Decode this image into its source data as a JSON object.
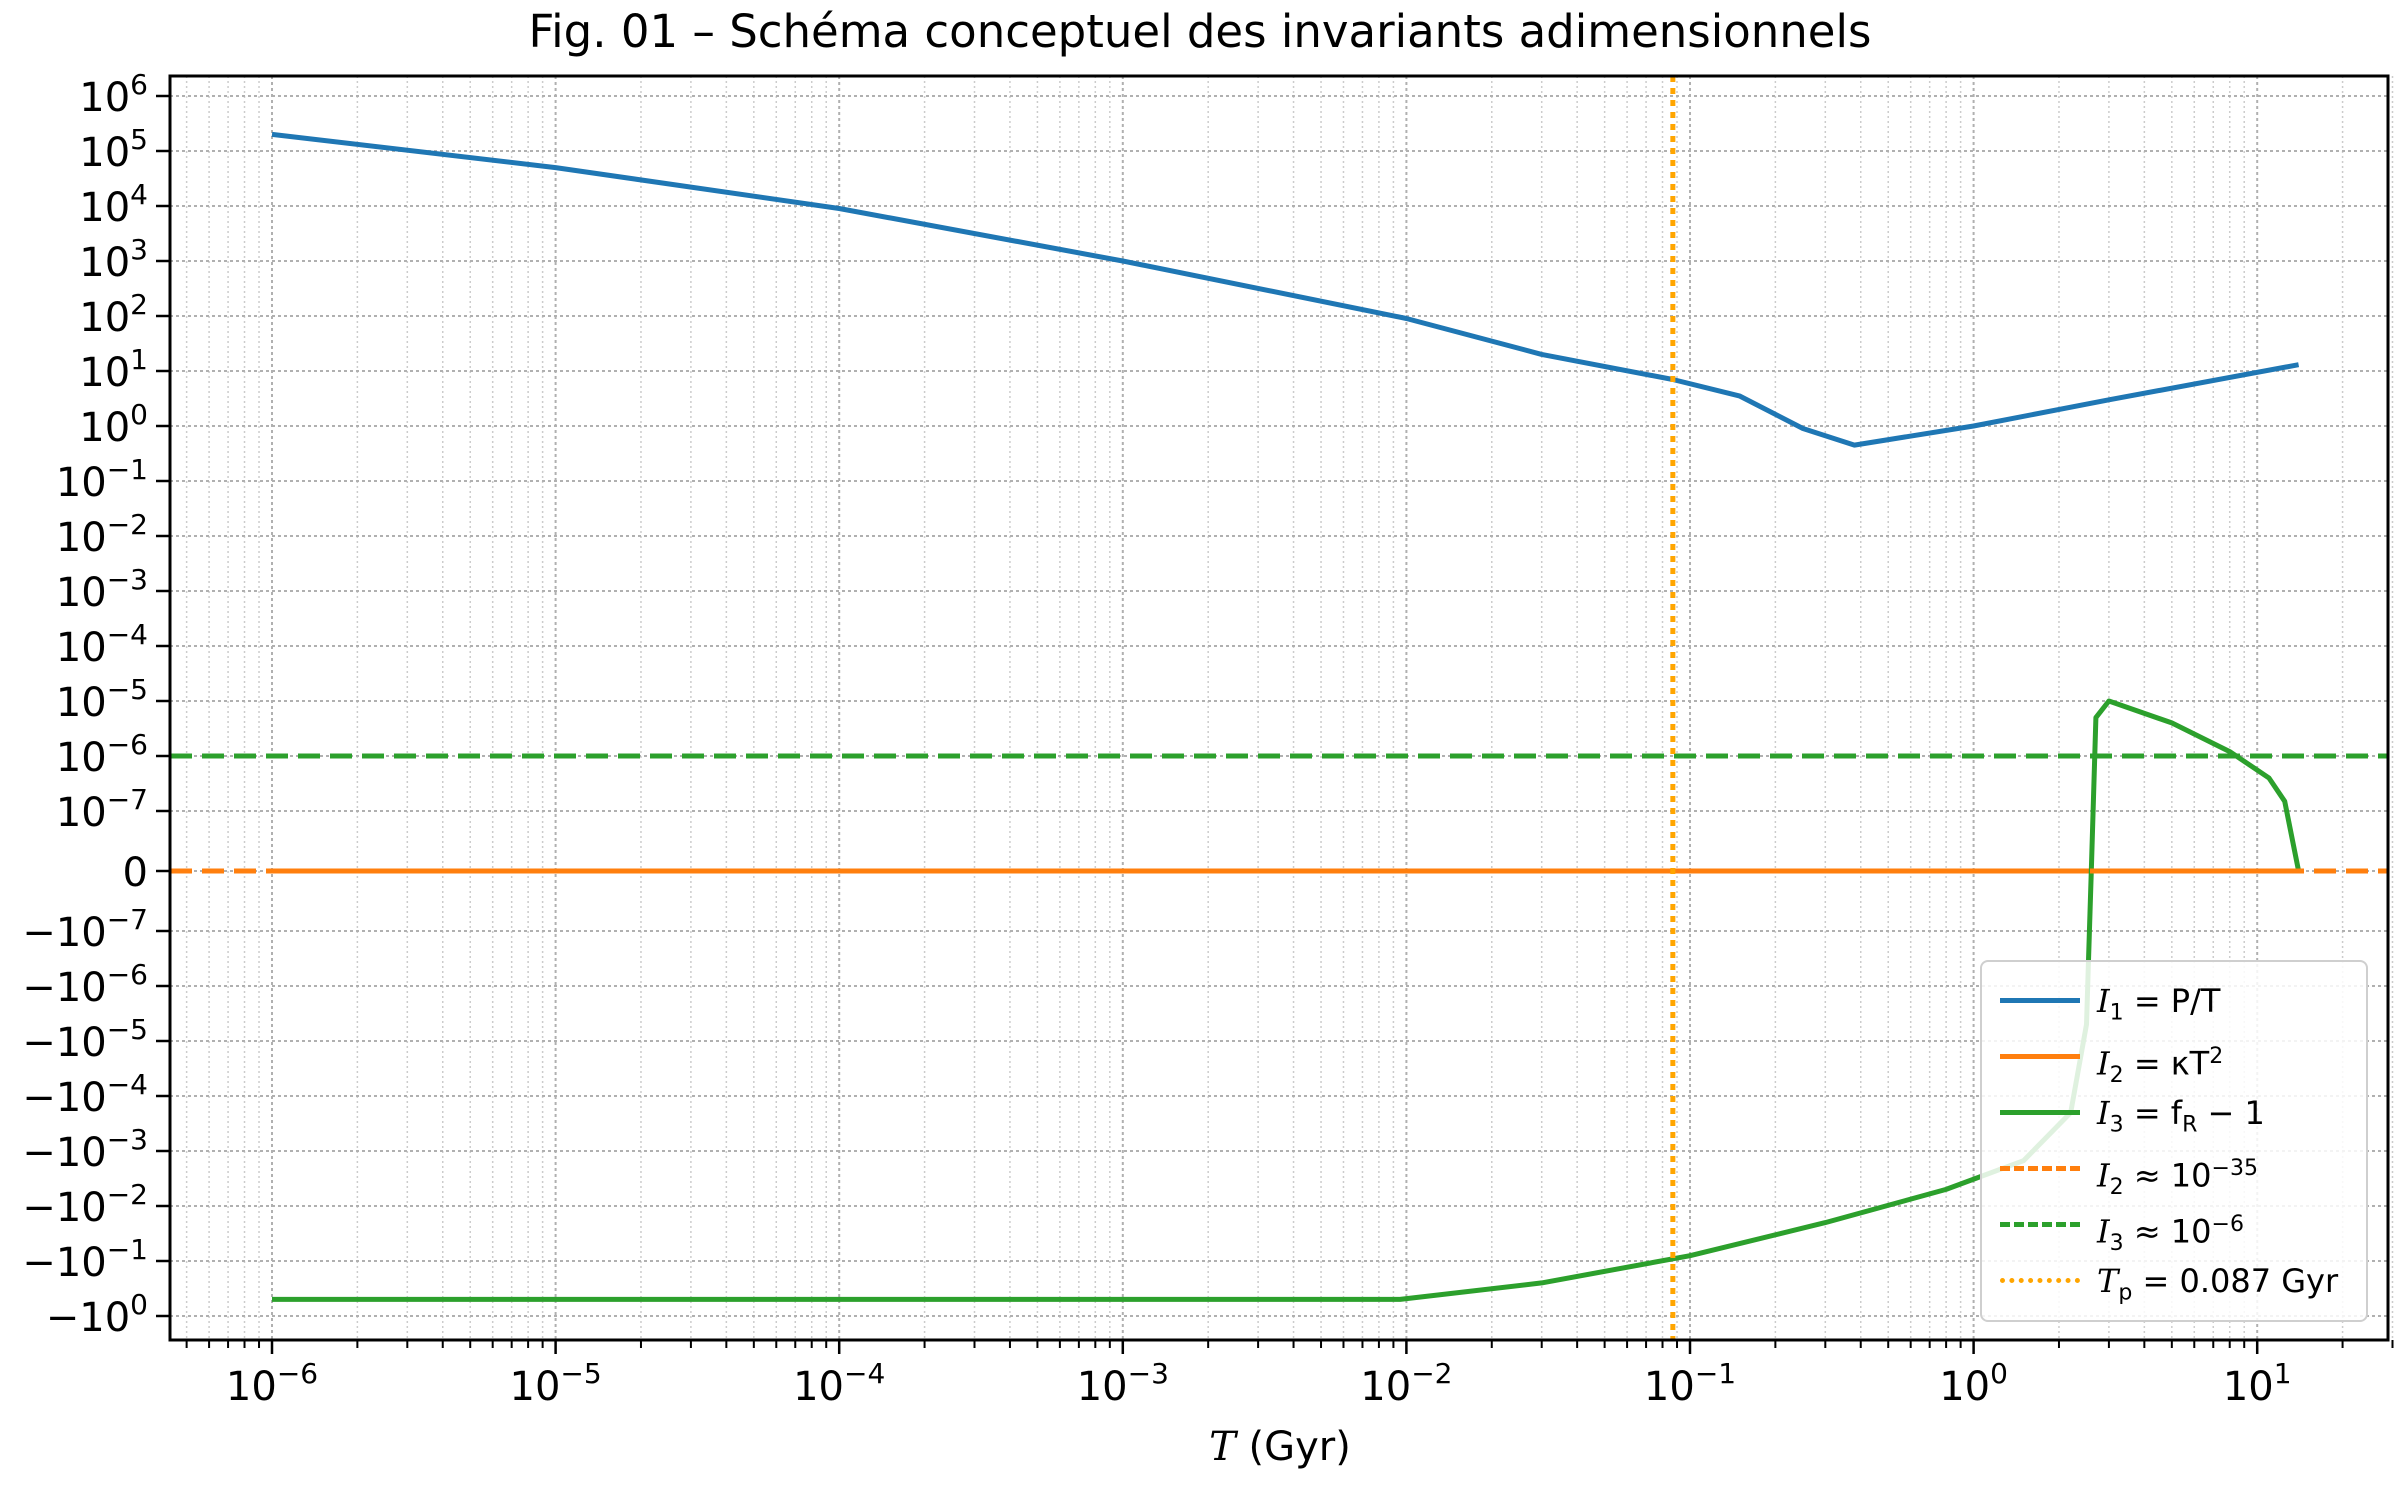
{
  "chart_data": {
    "type": "line",
    "title": "Fig. 01 – Schéma conceptuel des invariants adimensionnels",
    "xlabel": "T (Gyr)",
    "xlabel_var": "T",
    "xlabel_unit": "(Gyr)",
    "ylabel": "",
    "x_scale": "log",
    "y_scale": "symlog",
    "xlim": [
      5e-07,
      30
    ],
    "ylim": [
      -1.4,
      1400000.0
    ],
    "grid": true,
    "x_ticks": [
      {
        "base": "10",
        "exp": "−6"
      },
      {
        "base": "10",
        "exp": "−5"
      },
      {
        "base": "10",
        "exp": "−4"
      },
      {
        "base": "10",
        "exp": "−3"
      },
      {
        "base": "10",
        "exp": "−2"
      },
      {
        "base": "10",
        "exp": "−1"
      },
      {
        "base": "10",
        "exp": "0"
      },
      {
        "base": "10",
        "exp": "1"
      }
    ],
    "y_ticks": [
      {
        "base": "10",
        "exp": "6"
      },
      {
        "base": "10",
        "exp": "5"
      },
      {
        "base": "10",
        "exp": "4"
      },
      {
        "base": "10",
        "exp": "3"
      },
      {
        "base": "10",
        "exp": "2"
      },
      {
        "base": "10",
        "exp": "1"
      },
      {
        "base": "10",
        "exp": "0"
      },
      {
        "base": "10",
        "exp": "−1"
      },
      {
        "base": "10",
        "exp": "−2"
      },
      {
        "base": "10",
        "exp": "−3"
      },
      {
        "base": "10",
        "exp": "−4"
      },
      {
        "base": "10",
        "exp": "−5"
      },
      {
        "base": "10",
        "exp": "−6"
      },
      {
        "base": "10",
        "exp": "−7"
      },
      {
        "base": "0",
        "exp": ""
      },
      {
        "base": "−10",
        "exp": "−7"
      },
      {
        "base": "−10",
        "exp": "−6"
      },
      {
        "base": "−10",
        "exp": "−5"
      },
      {
        "base": "−10",
        "exp": "−4"
      },
      {
        "base": "−10",
        "exp": "−3"
      },
      {
        "base": "−10",
        "exp": "−2"
      },
      {
        "base": "−10",
        "exp": "−1"
      },
      {
        "base": "−10",
        "exp": "0"
      }
    ],
    "legend_position": "bottom-right",
    "series": [
      {
        "name": "I1 = P/T",
        "color": "#1f77b4",
        "style": "solid",
        "x": [
          1e-06,
          1e-05,
          0.0001,
          0.001,
          0.01,
          0.03,
          0.087,
          0.15,
          0.25,
          0.38,
          1,
          3,
          14
        ],
        "y": [
          200000,
          50000,
          9000,
          1000,
          90,
          20,
          7,
          3.5,
          0.9,
          0.45,
          1,
          3,
          13
        ]
      },
      {
        "name": "I2 = κT2",
        "color": "#ff7f0e",
        "style": "solid",
        "x": [
          1e-06,
          14
        ],
        "y": [
          1e-35,
          1e-35
        ]
      },
      {
        "name": "I3 = fR − 1",
        "color": "#2ca02c",
        "style": "solid",
        "x": [
          1e-06,
          0.0095,
          0.03,
          0.1,
          0.3,
          0.8,
          1.5,
          2.2,
          2.5,
          2.6,
          2.7,
          3,
          5,
          8,
          11,
          12.5,
          14
        ],
        "y": [
          -0.5,
          -0.5,
          -0.25,
          -0.08,
          -0.02,
          -0.005,
          -0.0015,
          -0.0002,
          -5e-06,
          0,
          5e-06,
          1e-05,
          4e-06,
          1.2e-06,
          4e-07,
          1.5e-07,
          0
        ]
      },
      {
        "name": "I2 ≈ 10−35",
        "color": "#ff7f0e",
        "style": "dashed",
        "y_const": 1e-35
      },
      {
        "name": "I3 ≈ 10−6",
        "color": "#2ca02c",
        "style": "dashed",
        "y_const": 1e-06
      },
      {
        "name": "Tp = 0.087 Gyr",
        "color": "#ffa500",
        "style": "dotted",
        "x_const": 0.087
      }
    ],
    "legend": [
      {
        "sym": "I",
        "sub": "1",
        "rest": " = P/T",
        "color": "#1f77b4",
        "style": "solid"
      },
      {
        "sym": "I",
        "sub": "2",
        "rest": " = κT",
        "sup": "2",
        "color": "#ff7f0e",
        "style": "solid"
      },
      {
        "sym": "I",
        "sub": "3",
        "rest": " = f",
        "sub2": "R",
        "rest2": " − 1",
        "color": "#2ca02c",
        "style": "solid"
      },
      {
        "sym": "I",
        "sub": "2",
        "rest": " ≈ 10",
        "sup": "−35",
        "color": "#ff7f0e",
        "style": "dashed"
      },
      {
        "sym": "I",
        "sub": "3",
        "rest": " ≈ 10",
        "sup": "−6",
        "color": "#2ca02c",
        "style": "dashed"
      },
      {
        "sym": "T",
        "sub": "p",
        "rest": " = 0.087 Gyr",
        "color": "#ffa500",
        "style": "dotted"
      }
    ]
  }
}
